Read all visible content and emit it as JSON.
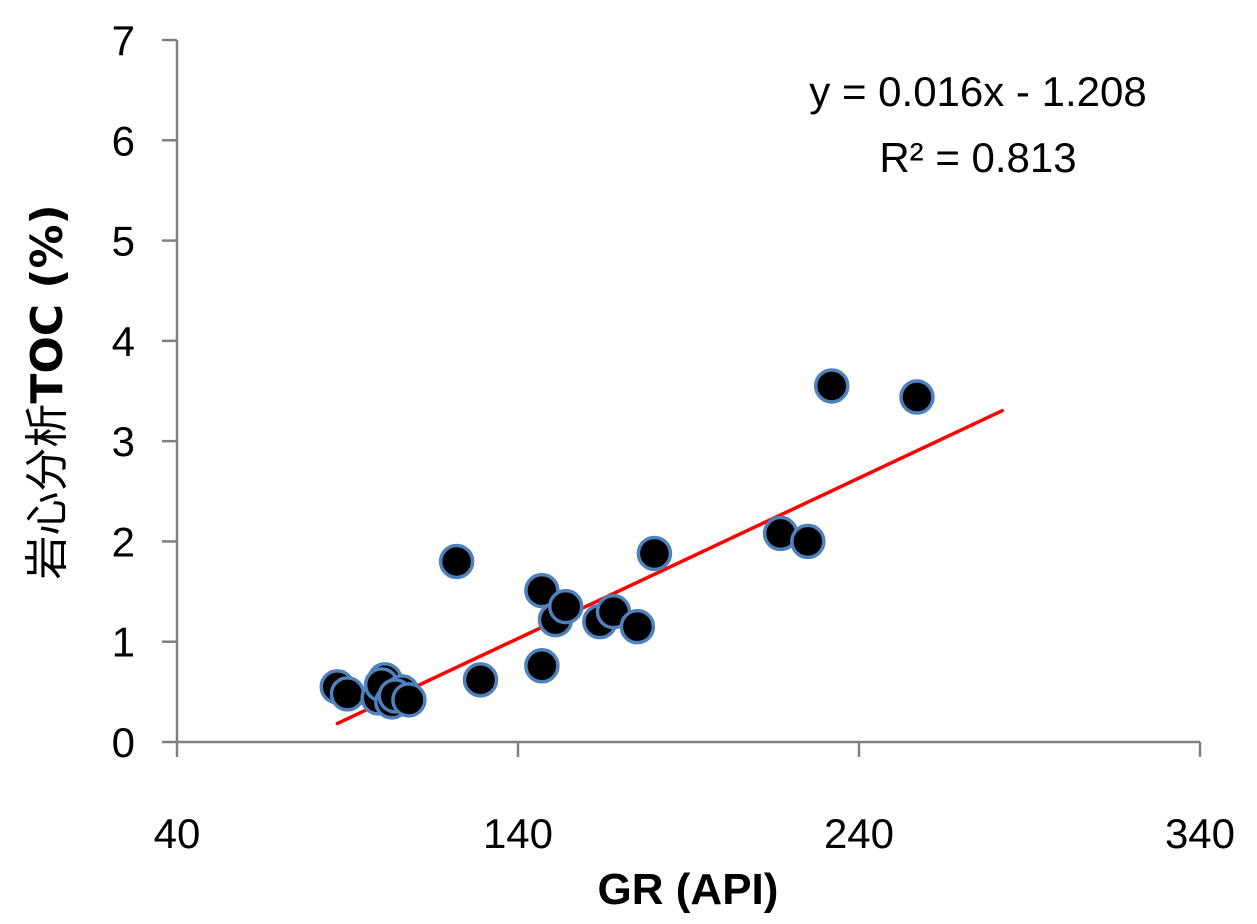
{
  "chart_data": {
    "type": "scatter",
    "title": "",
    "xlabel": "GR (API)",
    "ylabel_prefix": "岩心分析",
    "ylabel_bold": "TOC (%)",
    "xlim": [
      40,
      340
    ],
    "ylim": [
      0,
      7
    ],
    "xticks": [
      40,
      140,
      240,
      340
    ],
    "xtick_labels": [
      "40",
      "140",
      "240",
      "340"
    ],
    "yticks": [
      0,
      1,
      2,
      3,
      4,
      5,
      6,
      7
    ],
    "ytick_labels": [
      "0",
      "1",
      "2",
      "3",
      "4",
      "5",
      "6",
      "7"
    ],
    "grid": false,
    "legend": "none",
    "series": [
      {
        "x": [
          87,
          90,
          99,
          101,
          100,
          103,
          106,
          104,
          108,
          122,
          129,
          147,
          147,
          151,
          154,
          164,
          168,
          175,
          180,
          217,
          225,
          232,
          257
        ],
        "y": [
          0.55,
          0.48,
          0.44,
          0.62,
          0.57,
          0.4,
          0.5,
          0.46,
          0.42,
          1.8,
          0.62,
          0.76,
          1.51,
          1.22,
          1.35,
          1.2,
          1.3,
          1.15,
          1.88,
          2.08,
          2.0,
          3.55,
          3.44
        ],
        "marker_fill": "#000000",
        "marker_edge": "#4f81bd"
      }
    ],
    "trendline": {
      "equation": "y = 0.016x - 1.208",
      "r2": "R² = 0.813",
      "slope": 0.016,
      "intercept": -1.208,
      "x_range": [
        87,
        282
      ],
      "color": "#ff0000"
    },
    "axis_color": "#808080"
  }
}
